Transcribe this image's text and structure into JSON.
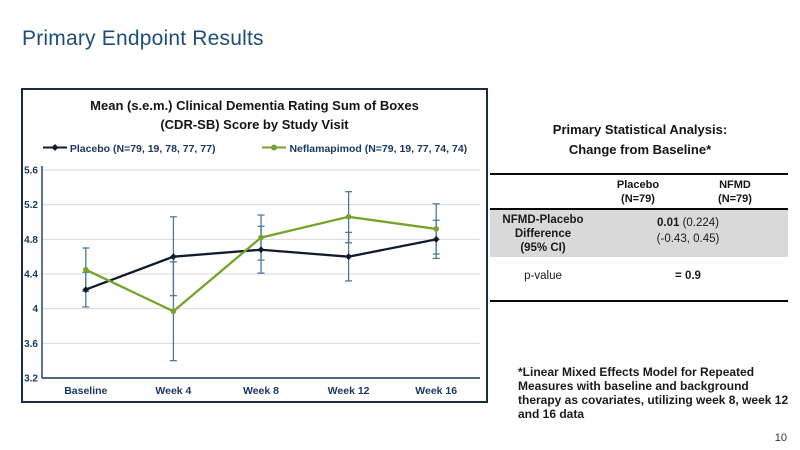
{
  "slide": {
    "title": "Primary Endpoint Results",
    "page_number": "10"
  },
  "chart_panel": {
    "title_line1": "Mean (s.e.m.) Clinical Dementia Rating Sum of Boxes",
    "title_line2": "(CDR-SB) Score by Study Visit"
  },
  "stats_panel": {
    "heading_line1": "Primary Statistical Analysis:",
    "heading_line2": "Change from Baseline*",
    "columns": [
      {
        "name": "Placebo",
        "n": "(N=79)"
      },
      {
        "name": "NFMD",
        "n": "(N=79)"
      }
    ],
    "difference_row": {
      "label_line1": "NFMD-Placebo",
      "label_line2": "Difference",
      "label_line3": "(95% CI)",
      "estimate": "0.01",
      "se": "(0.224)",
      "ci": "(-0.43, 0.45)"
    },
    "pvalue_row": {
      "label": "p-value",
      "value": "= 0.9"
    },
    "footnote": "*Linear Mixed Effects Model for Repeated Measures with baseline and background therapy as covariates, utilizing week 8, week 12 and 16 data"
  },
  "chart_data": {
    "type": "line",
    "title": "Mean (s.e.m.) Clinical Dementia Rating Sum of Boxes (CDR-SB) Score by Study Visit",
    "categories": [
      "Baseline",
      "Week 4",
      "Week 8",
      "Week 12",
      "Week 16"
    ],
    "series": [
      {
        "name": "Placebo (N=79, 19, 78, 77, 77)",
        "color": "#111c2d",
        "marker": "diamond",
        "values": [
          4.22,
          4.6,
          4.68,
          4.6,
          4.8
        ],
        "err_low": [
          4.02,
          4.15,
          4.41,
          4.32,
          4.58
        ],
        "err_high": [
          4.42,
          5.06,
          4.95,
          4.88,
          5.02
        ]
      },
      {
        "name": "Neflamapimod (N=79, 19, 77, 74, 74)",
        "color": "#76a32e",
        "marker": "circle",
        "values": [
          4.45,
          3.97,
          4.82,
          5.06,
          4.92
        ],
        "err_low": [
          4.2,
          3.4,
          4.56,
          4.76,
          4.63
        ],
        "err_high": [
          4.7,
          4.54,
          5.08,
          5.35,
          5.21
        ]
      }
    ],
    "error_bar_color": "#4e7a99",
    "ylim": [
      3.2,
      5.6
    ],
    "yticks": [
      3.2,
      3.6,
      4,
      4.4,
      4.8,
      5.2,
      5.6
    ],
    "ytick_labels": [
      "3.2",
      "3.6",
      "4",
      "4.4",
      "4.8",
      "5.2",
      "5.6"
    ],
    "grid": true,
    "legend_position": "top",
    "axis_color": "#17375e",
    "grid_color": "#d9d9d9"
  }
}
